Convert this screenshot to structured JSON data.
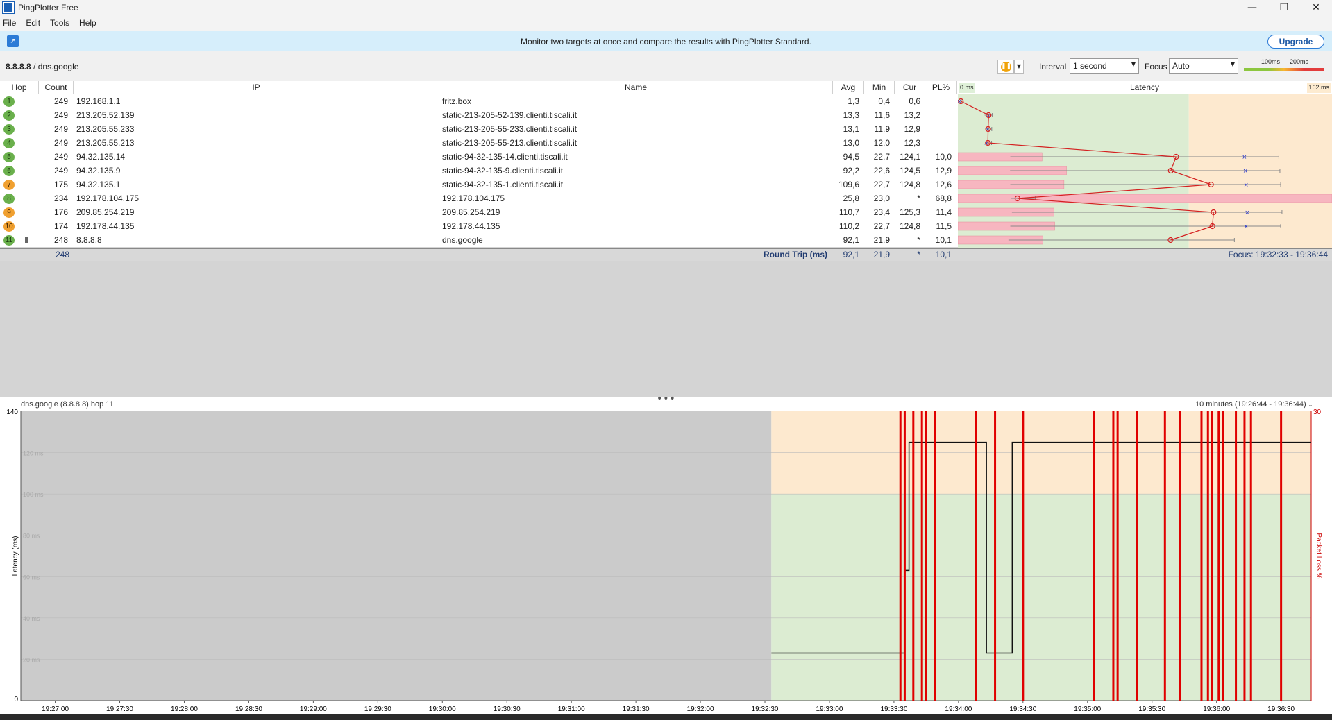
{
  "window": {
    "title": "PingPlotter Free",
    "min": "—",
    "max": "❐",
    "close": "✕"
  },
  "menu": [
    "File",
    "Edit",
    "Tools",
    "Help"
  ],
  "banner": {
    "text": "Monitor two targets at once and compare the results with PingPlotter Standard.",
    "button": "Upgrade"
  },
  "toolbar": {
    "target_ip": "8.8.8.8",
    "target_sep": " / ",
    "target_name": "dns.google",
    "interval_label": "Interval",
    "interval_value": "1 second",
    "focus_label": "Focus",
    "focus_value": "Auto",
    "scale_100": "100ms",
    "scale_200": "200ms"
  },
  "columns": {
    "hop": "Hop",
    "count": "Count",
    "ip": "IP",
    "name": "Name",
    "avg": "Avg",
    "min": "Min",
    "cur": "Cur",
    "pl": "PL%",
    "latency": "Latency",
    "lat_min": "0 ms",
    "lat_max": "162 ms"
  },
  "hops": [
    {
      "hop": "1",
      "count": "249",
      "ip": "192.168.1.1",
      "name": "fritz.box",
      "avg": "1,3",
      "min": "0,4",
      "cur": "0,6",
      "pl": "",
      "color": "green"
    },
    {
      "hop": "2",
      "count": "249",
      "ip": "213.205.52.139",
      "name": "static-213-205-52-139.clienti.tiscali.it",
      "avg": "13,3",
      "min": "11,6",
      "cur": "13,2",
      "pl": "",
      "color": "green"
    },
    {
      "hop": "3",
      "count": "249",
      "ip": "213.205.55.233",
      "name": "static-213-205-55-233.clienti.tiscali.it",
      "avg": "13,1",
      "min": "11,9",
      "cur": "12,9",
      "pl": "",
      "color": "green"
    },
    {
      "hop": "4",
      "count": "249",
      "ip": "213.205.55.213",
      "name": "static-213-205-55-213.clienti.tiscali.it",
      "avg": "13,0",
      "min": "12,0",
      "cur": "12,3",
      "pl": "",
      "color": "green"
    },
    {
      "hop": "5",
      "count": "249",
      "ip": "94.32.135.14",
      "name": "static-94-32-135-14.clienti.tiscali.it",
      "avg": "94,5",
      "min": "22,7",
      "cur": "124,1",
      "pl": "10,0",
      "color": "green"
    },
    {
      "hop": "6",
      "count": "249",
      "ip": "94.32.135.9",
      "name": "static-94-32-135-9.clienti.tiscali.it",
      "avg": "92,2",
      "min": "22,6",
      "cur": "124,5",
      "pl": "12,9",
      "color": "green"
    },
    {
      "hop": "7",
      "count": "175",
      "ip": "94.32.135.1",
      "name": "static-94-32-135-1.clienti.tiscali.it",
      "avg": "109,6",
      "min": "22,7",
      "cur": "124,8",
      "pl": "12,6",
      "color": "orange"
    },
    {
      "hop": "8",
      "count": "234",
      "ip": "192.178.104.175",
      "name": "192.178.104.175",
      "avg": "25,8",
      "min": "23,0",
      "cur": "*",
      "pl": "68,8",
      "color": "green"
    },
    {
      "hop": "9",
      "count": "176",
      "ip": "209.85.254.219",
      "name": "209.85.254.219",
      "avg": "110,7",
      "min": "23,4",
      "cur": "125,3",
      "pl": "11,4",
      "color": "orange"
    },
    {
      "hop": "10",
      "count": "174",
      "ip": "192.178.44.135",
      "name": "192.178.44.135",
      "avg": "110,2",
      "min": "22,7",
      "cur": "124,8",
      "pl": "11,5",
      "color": "orange"
    },
    {
      "hop": "11",
      "count": "248",
      "ip": "8.8.8.8",
      "name": "dns.google",
      "avg": "92,1",
      "min": "21,9",
      "cur": "*",
      "pl": "10,1",
      "color": "green"
    }
  ],
  "summary": {
    "count": "248",
    "label": "Round Trip (ms)",
    "avg": "92,1",
    "min": "21,9",
    "cur": "*",
    "pl": "10,1",
    "focus": "Focus: 19:32:33 - 19:36:44"
  },
  "graph": {
    "title": "dns.google (8.8.8.8) hop 11",
    "range": "10 minutes (19:26:44 - 19:36:44)",
    "ylabel": "Latency (ms)",
    "y2label": "Packet Loss %",
    "y_top": "140",
    "y_bottom": "0",
    "y2_top": "30"
  },
  "chart_data": {
    "type": "line",
    "title": "dns.google (8.8.8.8) hop 11",
    "xlabel": "",
    "ylabel": "Latency (ms)",
    "ylim": [
      0,
      140
    ],
    "y_ticks": [
      "120 ms",
      "100 ms",
      "80 ms",
      "60 ms",
      "40 ms",
      "20 ms"
    ],
    "x_ticks": [
      "19:27:00",
      "19:27:30",
      "19:28:00",
      "19:28:30",
      "19:29:00",
      "19:29:30",
      "19:30:00",
      "19:30:30",
      "19:31:00",
      "19:31:30",
      "19:32:00",
      "19:32:30",
      "19:33:00",
      "19:33:30",
      "19:34:00",
      "19:34:30",
      "19:35:00",
      "19:35:30",
      "19:36:00",
      "19:36:30"
    ],
    "series": [
      {
        "x": [
          "19:32:33",
          "19:33:34",
          "19:33:35",
          "19:33:37",
          "19:34:12",
          "19:34:13",
          "19:34:23",
          "19:34:25",
          "19:36:44"
        ],
        "values": [
          23,
          23,
          63,
          125,
          125,
          23,
          23,
          125,
          125
        ]
      }
    ],
    "loss_markers": [
      "19:33:33",
      "19:33:35",
      "19:33:39",
      "19:33:43",
      "19:33:45",
      "19:33:49",
      "19:34:08",
      "19:34:17",
      "19:34:30",
      "19:35:03",
      "19:35:12",
      "19:35:14",
      "19:35:23",
      "19:35:36",
      "19:35:43",
      "19:35:53",
      "19:35:56",
      "19:35:58",
      "19:36:01",
      "19:36:03",
      "19:36:09",
      "19:36:13",
      "19:36:16",
      "19:36:30"
    ]
  }
}
